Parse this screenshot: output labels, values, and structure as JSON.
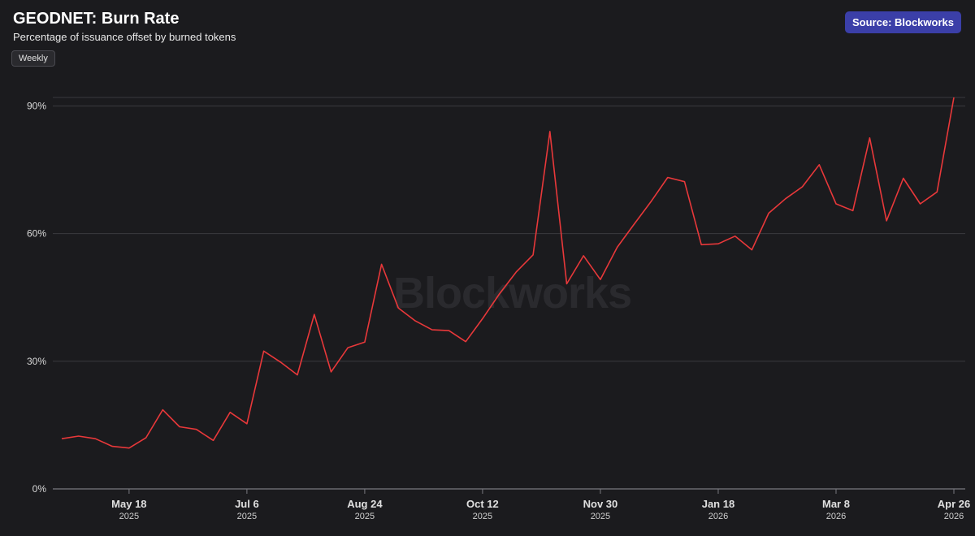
{
  "header": {
    "title": "GEODNET: Burn Rate",
    "subtitle": "Percentage of issuance offset by burned tokens",
    "period_button": "Weekly",
    "source_badge": "Source: Blockworks",
    "watermark": "Blockworks"
  },
  "colors": {
    "background": "#1b1b1e",
    "line": "#e8383a",
    "grid": "#3a3a3e",
    "badge": "#3b3fa8"
  },
  "chart_data": {
    "type": "line",
    "title": "GEODNET: Burn Rate",
    "subtitle": "Percentage of issuance offset by burned tokens",
    "xlabel": "",
    "ylabel": "",
    "ylim": [
      0,
      92
    ],
    "yticks": [
      {
        "value": 0,
        "label": "0%"
      },
      {
        "value": 30,
        "label": "30%"
      },
      {
        "value": 60,
        "label": "60%"
      },
      {
        "value": 90,
        "label": "90%"
      }
    ],
    "xticks": [
      {
        "index": 4,
        "label": "May 18",
        "year": "2025"
      },
      {
        "index": 11,
        "label": "Jul 6",
        "year": "2025"
      },
      {
        "index": 18,
        "label": "Aug 24",
        "year": "2025"
      },
      {
        "index": 25,
        "label": "Oct 12",
        "year": "2025"
      },
      {
        "index": 32,
        "label": "Nov 30",
        "year": "2025"
      },
      {
        "index": 39,
        "label": "Jan 18",
        "year": "2026"
      },
      {
        "index": 46,
        "label": "Mar 8",
        "year": "2026"
      },
      {
        "index": 53,
        "label": "Apr 26",
        "year": "2026"
      }
    ],
    "grid": true,
    "legend": "none",
    "series": [
      {
        "values": [
          11.8,
          12.4,
          11.8,
          10.0,
          9.6,
          12.0,
          18.6,
          14.6,
          14.0,
          11.4,
          18.0,
          15.3,
          32.4,
          29.8,
          26.8,
          41.0,
          27.5,
          33.2,
          34.5,
          52.8,
          42.5,
          39.5,
          37.4,
          37.2,
          34.6,
          40.0,
          45.8,
          51.0,
          55.0,
          84.0,
          48.2,
          54.8,
          49.2,
          56.8,
          62.2,
          67.5,
          73.2,
          72.2,
          57.4,
          57.6,
          59.4,
          56.2,
          64.8,
          68.2,
          71.0,
          76.2,
          67.0,
          65.4,
          82.5,
          63.0,
          73.0,
          67.0,
          69.8,
          92.0
        ]
      }
    ]
  }
}
